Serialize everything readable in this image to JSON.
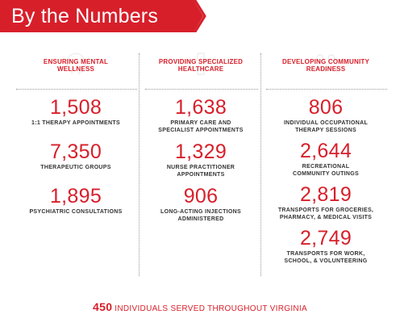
{
  "header": {
    "title": "By the Numbers"
  },
  "columns": [
    {
      "heading": "ENSURING MENTAL\nWELLNESS",
      "icon": "head-icon",
      "stats": [
        {
          "value": "1,508",
          "label": "1:1 THERAPY APPOINTMENTS"
        },
        {
          "value": "7,350",
          "label": "THERAPEUTIC GROUPS"
        },
        {
          "value": "1,895",
          "label": "PSYCHIATRIC CONSULTATIONS"
        }
      ]
    },
    {
      "heading": "PROVIDING SPECIALIZED\nHEALTHCARE",
      "icon": "medical-icon",
      "stats": [
        {
          "value": "1,638",
          "label": "PRIMARY CARE AND\nSPECIALIST APPOINTMENTS"
        },
        {
          "value": "1,329",
          "label": "NURSE PRACTITIONER\nAPPOINTMENTS"
        },
        {
          "value": "906",
          "label": "LONG-ACTING INJECTIONS\nADMINISTERED"
        }
      ]
    },
    {
      "heading": "DEVELOPING COMMUNITY\nREADINESS",
      "icon": "community-icon",
      "stats": [
        {
          "value": "806",
          "label": "INDIVIDUAL OCCUPATIONAL\nTHERAPY SESSIONS"
        },
        {
          "value": "2,644",
          "label": "RECREATIONAL\nCOMMUNITY OUTINGS"
        },
        {
          "value": "2,819",
          "label": "TRANSPORTS FOR GROCERIES,\nPHARMACY, & MEDICAL VISITS"
        },
        {
          "value": "2,749",
          "label": "TRANSPORTS FOR WORK,\nSCHOOL, & VOLUNTEERING"
        }
      ]
    }
  ],
  "footer": {
    "count": "450",
    "text": "INDIVIDUALS SERVED THROUGHOUT VIRGINIA"
  },
  "colors": {
    "accent": "#d71f2a",
    "text": "#333333"
  }
}
